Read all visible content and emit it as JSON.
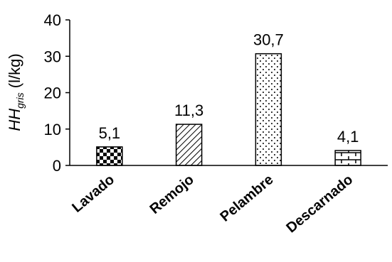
{
  "chart_data": {
    "type": "bar",
    "categories": [
      "Lavado",
      "Remojo",
      "Pelambre",
      "Descarnado"
    ],
    "values": [
      5.1,
      11.3,
      30.7,
      4.1
    ],
    "value_labels": [
      "5,1",
      "11,3",
      "30,7",
      "4,1"
    ],
    "patterns": [
      "checker",
      "diagonal",
      "dots",
      "brick"
    ],
    "ylabel_main": "HH",
    "ylabel_sub": "gris",
    "ylabel_unit": " (l/kg)",
    "ylim": [
      0,
      40
    ],
    "yticks": [
      0,
      10,
      20,
      30,
      40
    ],
    "grid": false
  }
}
